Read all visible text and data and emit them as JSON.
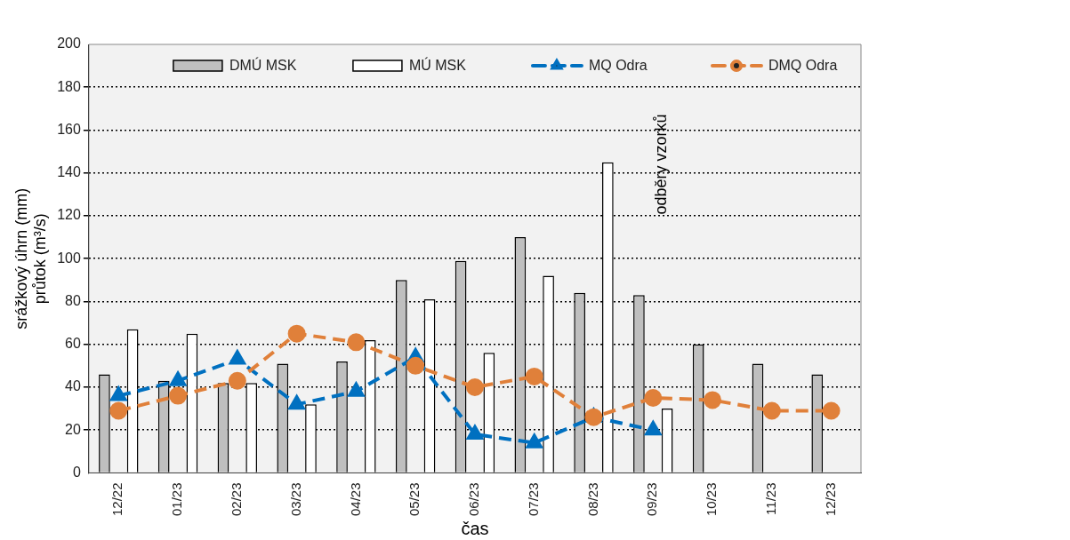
{
  "chart_data": {
    "type": "bar",
    "xlabel": "čas",
    "ylabel": "srážkový úhrn (mm)\nprůtok (m³/s)",
    "categories": [
      "12/22",
      "01/23",
      "02/23",
      "03/23",
      "04/23",
      "05/23",
      "06/23",
      "07/23",
      "08/23",
      "09/23",
      "10/23",
      "11/23",
      "12/23"
    ],
    "series": [
      {
        "name": "DMÚ MSK",
        "color": "#bfbfbf",
        "values": [
          46,
          43,
          42,
          51,
          52,
          90,
          99,
          110,
          84,
          83,
          60,
          51,
          46
        ]
      },
      {
        "name": "MÚ MSK",
        "color": "#ffffff",
        "values": [
          67,
          65,
          42,
          32,
          62,
          81,
          56,
          92,
          145,
          30,
          null,
          null,
          null
        ]
      },
      {
        "name": "MQ Odra",
        "type": "line",
        "color": "#0070c0",
        "marker": "triangle",
        "line_style": "dashed",
        "values": [
          36,
          43,
          53,
          32,
          38,
          54,
          18,
          14,
          26,
          20,
          null,
          null,
          null
        ]
      },
      {
        "name": "DMQ Odra",
        "type": "line",
        "color": "#e0803a",
        "marker": "circle",
        "line_style": "dashed",
        "values": [
          29,
          36,
          43,
          65,
          61,
          50,
          40,
          45,
          26,
          35,
          34,
          29,
          29
        ]
      }
    ],
    "ylim": [
      0,
      200
    ],
    "yticks": [
      0,
      20,
      40,
      60,
      80,
      100,
      120,
      140,
      160,
      180,
      200
    ],
    "grid": "y",
    "legend": "top",
    "annotations": [
      "odběry vzorků"
    ]
  }
}
